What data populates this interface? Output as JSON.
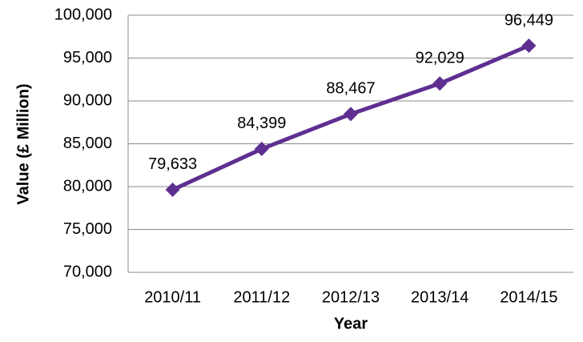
{
  "chart_data": {
    "type": "line",
    "x_label": "Year",
    "y_label": "Value (£ Million)",
    "categories": [
      "2010/11",
      "2011/12",
      "2012/13",
      "2013/14",
      "2014/15"
    ],
    "values": [
      79633,
      84399,
      88467,
      92029,
      96449
    ],
    "value_labels": [
      "79,633",
      "84,399",
      "88,467",
      "92,029",
      "96,449"
    ],
    "color": "#5e2f91",
    "ylim": [
      70000,
      100000
    ],
    "yticks": [
      {
        "value": 70000,
        "label": "70,000"
      },
      {
        "value": 75000,
        "label": "75,000"
      },
      {
        "value": 80000,
        "label": "80,000"
      },
      {
        "value": 85000,
        "label": "85,000"
      },
      {
        "value": 90000,
        "label": "90,000"
      },
      {
        "value": 95000,
        "label": "95,000"
      },
      {
        "value": 100000,
        "label": "100,000"
      }
    ],
    "grid": true
  }
}
